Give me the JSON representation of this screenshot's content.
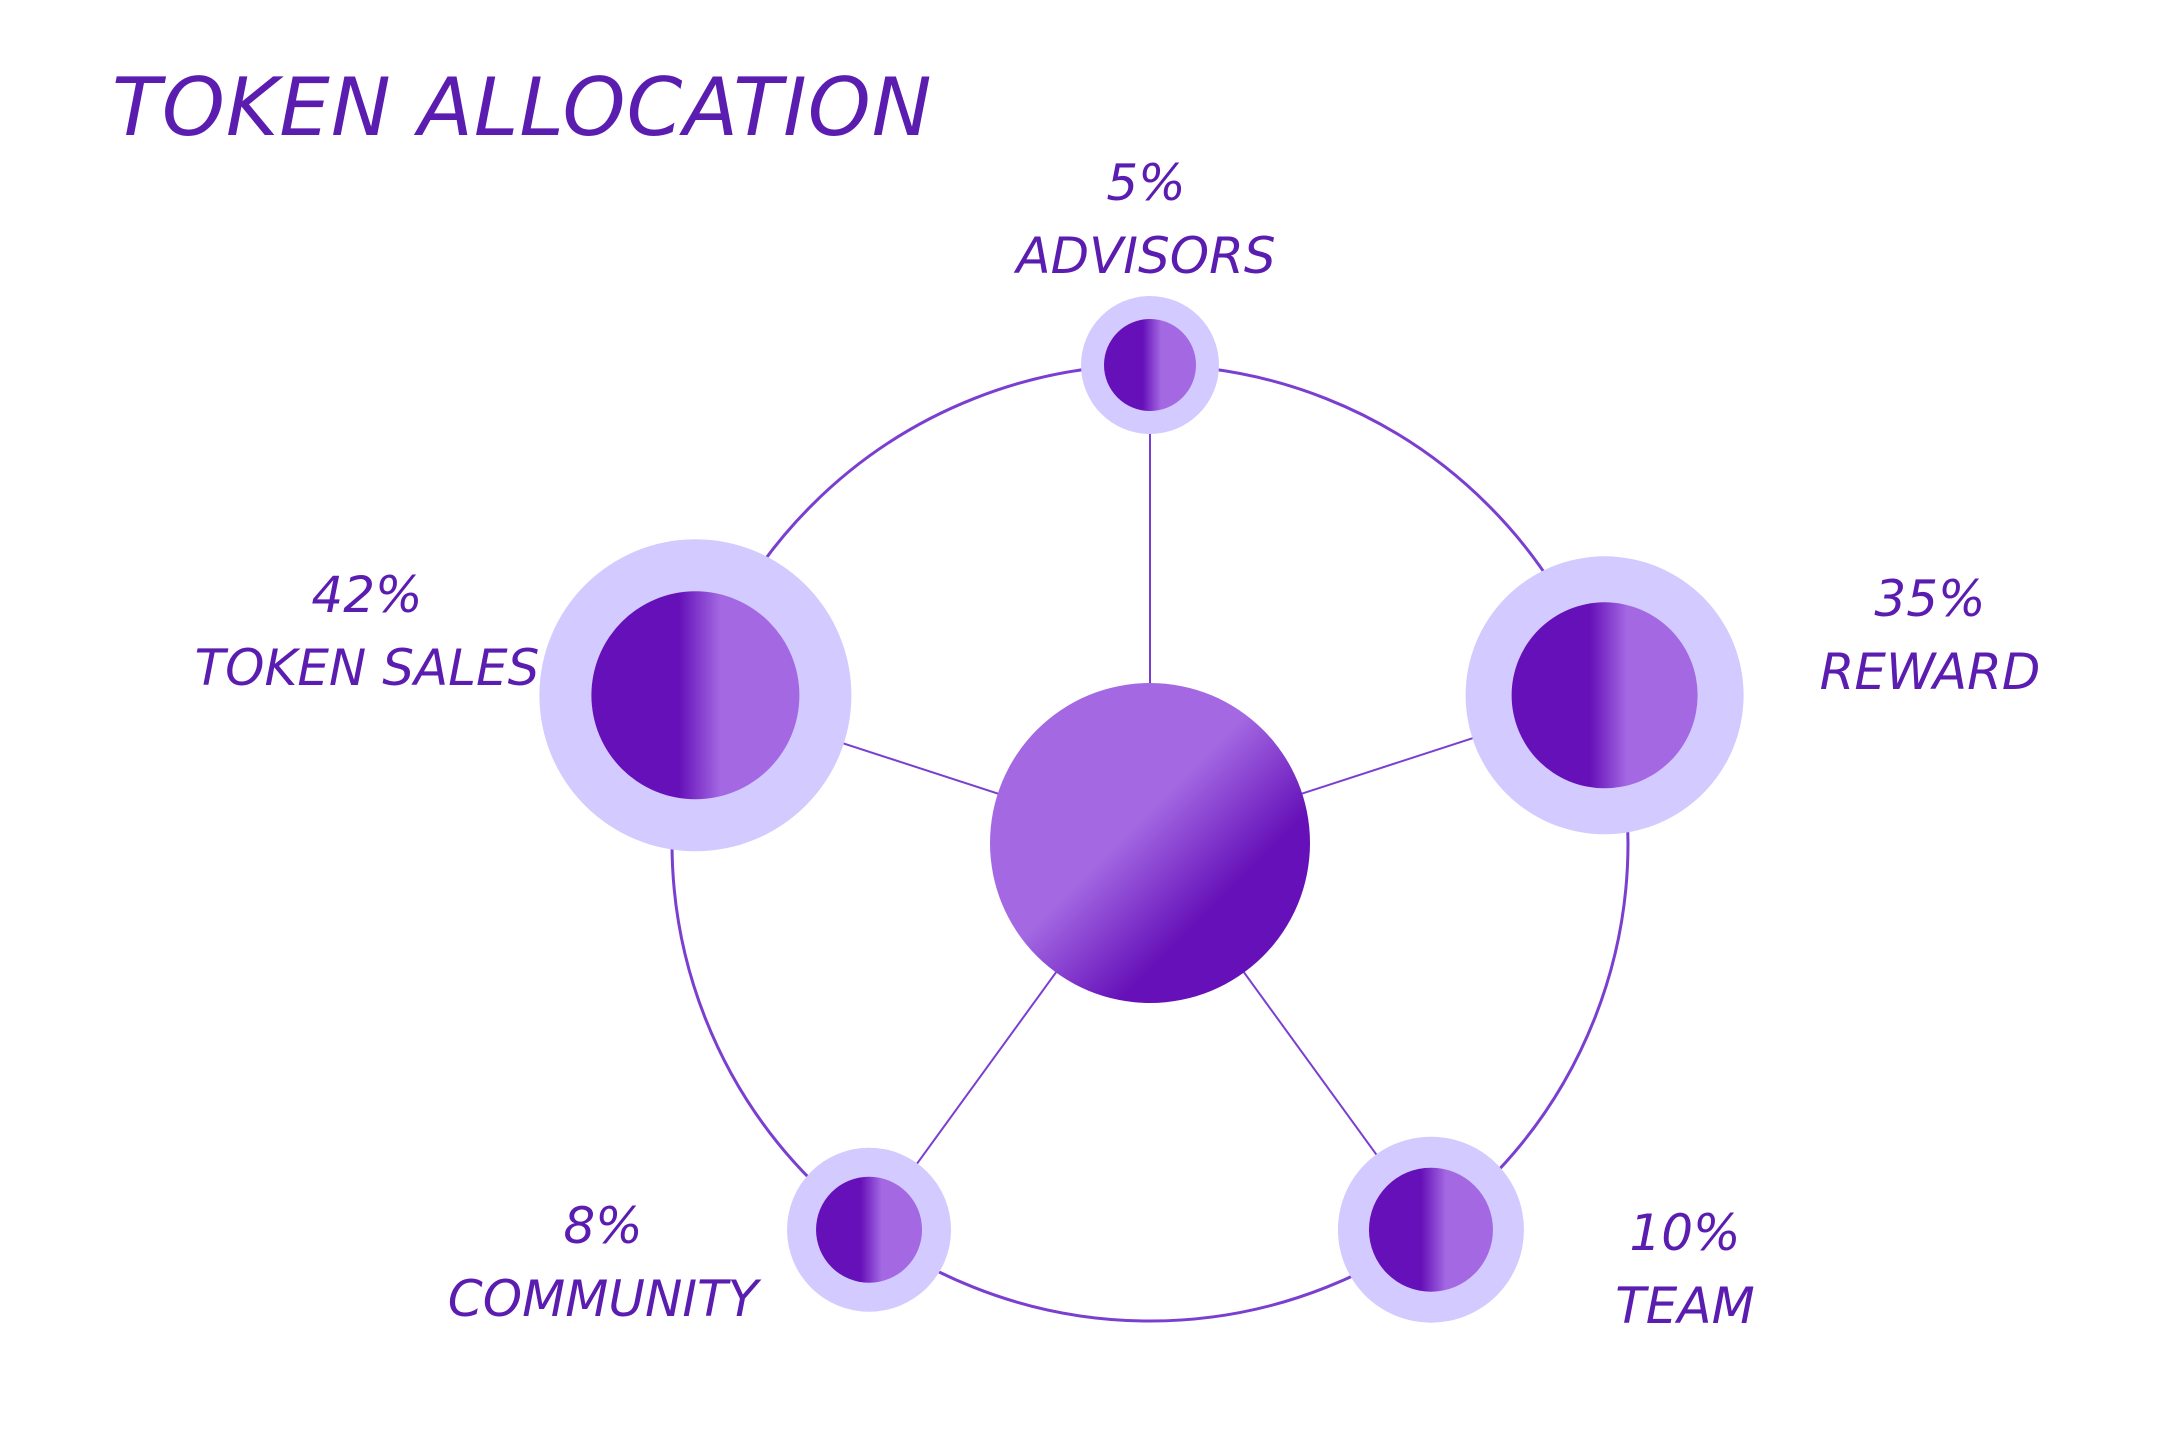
{
  "title": "TOKEN ALLOCATION",
  "chart_data": {
    "type": "pie",
    "title": "TOKEN ALLOCATION",
    "categories": [
      "ADVISORS",
      "REWARD",
      "TEAM",
      "COMMUNITY",
      "TOKEN SALES"
    ],
    "values": [
      5,
      35,
      10,
      8,
      42
    ],
    "value_labels": [
      "5%",
      "35%",
      "10%",
      "8%",
      "42%"
    ],
    "unit": "%",
    "style": "radial node diagram: a central hub linked to one circle per category on a surrounding ring",
    "legend": "none",
    "grid": false,
    "colors": {
      "text": "#5b1cb0",
      "line": "#7a3fd0",
      "halo": "#d3caff",
      "node_dark": "#6510b8",
      "node_light": "#a368e2"
    }
  }
}
